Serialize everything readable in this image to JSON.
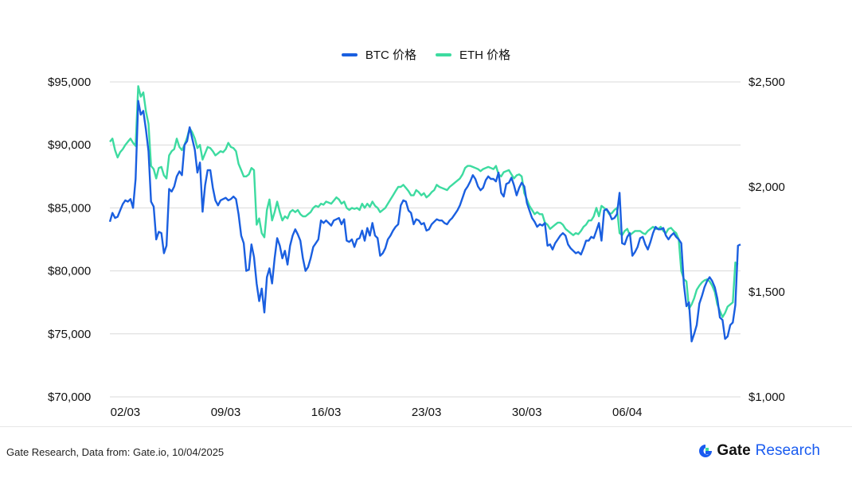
{
  "colors": {
    "btc": "#1a5fe0",
    "eth": "#3ddba0",
    "grid": "#d9d9d9",
    "brand": "#1a5cf0"
  },
  "legend": {
    "btc_label": "BTC 价格",
    "eth_label": "ETH 价格"
  },
  "footer": {
    "source": "Gate Research, Data from: Gate.io, 10/04/2025",
    "brand_name": "Gate",
    "brand_sub": "Research"
  },
  "chart_data": {
    "type": "line",
    "x_tick_labels": [
      "02/03",
      "09/03",
      "16/03",
      "23/03",
      "30/03",
      "06/04"
    ],
    "y_left": {
      "ticks": [
        "$70,000",
        "$75,000",
        "$80,000",
        "$85,000",
        "$90,000",
        "$95,000"
      ],
      "range": [
        70000,
        95000
      ]
    },
    "y_right": {
      "ticks": [
        "$1,000",
        "$1,500",
        "$2,000",
        "$2,500"
      ],
      "range": [
        1000,
        2500
      ]
    },
    "grid": true,
    "legend_position": "top",
    "series": [
      {
        "name": "BTC 价格",
        "axis": "left",
        "values": [
          83900,
          84600,
          84200,
          84300,
          84800,
          85300,
          85600,
          85500,
          85700,
          85000,
          87300,
          93500,
          92400,
          92700,
          91200,
          89500,
          85500,
          85100,
          82500,
          83100,
          83000,
          81400,
          82000,
          86500,
          86300,
          86700,
          87500,
          87900,
          87600,
          90000,
          90300,
          91400,
          90500,
          89600,
          87800,
          88600,
          84700,
          86800,
          88000,
          88000,
          86600,
          85600,
          85200,
          85600,
          85700,
          85800,
          85600,
          85700,
          85900,
          85700,
          84500,
          82800,
          82200,
          80000,
          80100,
          82100,
          81100,
          79000,
          77600,
          78600,
          76700,
          79500,
          80200,
          79000,
          81000,
          82600,
          82000,
          81000,
          81600,
          80500,
          82000,
          82800,
          83300,
          82900,
          82400,
          81000,
          80000,
          80300,
          81000,
          81900,
          82200,
          82500,
          84000,
          83800,
          84000,
          83800,
          83600,
          84000,
          84100,
          84200,
          83700,
          84100,
          82400,
          82300,
          82500,
          81900,
          82500,
          82600,
          83200,
          82400,
          83400,
          82800,
          83800,
          82800,
          82600,
          81200,
          81400,
          81800,
          82500,
          82800,
          83200,
          83500,
          83700,
          85200,
          85600,
          85500,
          84800,
          84600,
          83700,
          84100,
          84000,
          83700,
          83800,
          83200,
          83300,
          83700,
          83900,
          84100,
          84000,
          84000,
          83800,
          83700,
          84000,
          84200,
          84500,
          84800,
          85200,
          85800,
          86400,
          86700,
          87100,
          87600,
          87300,
          86700,
          86400,
          86600,
          87200,
          87500,
          87300,
          87300,
          87100,
          87800,
          86200,
          85900,
          86900,
          87000,
          87400,
          86800,
          86000,
          86600,
          87000,
          86700,
          85400,
          84800,
          84200,
          83900,
          83500,
          83700,
          83600,
          83800,
          82000,
          82100,
          81700,
          82200,
          82500,
          82800,
          83000,
          82800,
          82100,
          81800,
          81600,
          81400,
          81500,
          81300,
          81800,
          82400,
          82400,
          82700,
          82600,
          83200,
          83800,
          82400,
          84800,
          84900,
          84600,
          84100,
          84200,
          84500,
          86200,
          82200,
          82100,
          82700,
          83000,
          81200,
          81500,
          81900,
          82600,
          82700,
          82100,
          81700,
          82300,
          83000,
          83500,
          83300,
          83300,
          83400,
          82800,
          82500,
          82800,
          83000,
          82700,
          82500,
          82200,
          78900,
          77200,
          77500,
          74400,
          75000,
          75700,
          77400,
          78000,
          78700,
          79200,
          79500,
          79200,
          78700,
          77800,
          76300,
          76100,
          74600,
          74800,
          75700,
          75900,
          77300,
          82000,
          82100
        ]
      },
      {
        "name": "ETH 价格",
        "axis": "left_scaled",
        "values": [
          2215,
          2230,
          2175,
          2140,
          2165,
          2180,
          2200,
          2215,
          2230,
          2210,
          2195,
          2480,
          2430,
          2450,
          2360,
          2300,
          2100,
          2085,
          2040,
          2090,
          2095,
          2055,
          2040,
          2150,
          2170,
          2180,
          2230,
          2190,
          2175,
          2200,
          2235,
          2280,
          2260,
          2230,
          2185,
          2200,
          2130,
          2160,
          2190,
          2185,
          2170,
          2150,
          2160,
          2170,
          2165,
          2180,
          2210,
          2190,
          2185,
          2170,
          2110,
          2080,
          2050,
          2050,
          2060,
          2090,
          2080,
          1820,
          1850,
          1780,
          1760,
          1890,
          1940,
          1840,
          1880,
          1930,
          1880,
          1840,
          1860,
          1850,
          1880,
          1890,
          1880,
          1890,
          1870,
          1860,
          1860,
          1870,
          1880,
          1900,
          1910,
          1905,
          1920,
          1915,
          1930,
          1925,
          1920,
          1935,
          1950,
          1940,
          1920,
          1930,
          1900,
          1890,
          1900,
          1895,
          1900,
          1890,
          1920,
          1900,
          1920,
          1905,
          1930,
          1910,
          1900,
          1880,
          1890,
          1900,
          1920,
          1940,
          1960,
          1980,
          2000,
          2000,
          2010,
          1995,
          1980,
          1960,
          1960,
          1985,
          1975,
          1960,
          1970,
          1950,
          1960,
          1975,
          1985,
          2010,
          2000,
          1995,
          1990,
          1985,
          2000,
          2010,
          2020,
          2030,
          2040,
          2060,
          2090,
          2100,
          2100,
          2095,
          2090,
          2085,
          2075,
          2085,
          2090,
          2095,
          2090,
          2085,
          2100,
          2060,
          2050,
          2070,
          2075,
          2080,
          2060,
          2040,
          2055,
          2060,
          2050,
          1970,
          1940,
          1910,
          1890,
          1870,
          1880,
          1870,
          1870,
          1830,
          1820,
          1800,
          1810,
          1820,
          1830,
          1830,
          1820,
          1800,
          1790,
          1780,
          1770,
          1780,
          1775,
          1790,
          1810,
          1820,
          1840,
          1840,
          1860,
          1900,
          1860,
          1910,
          1900,
          1890,
          1870,
          1875,
          1890,
          1900,
          1780,
          1770,
          1790,
          1800,
          1770,
          1780,
          1790,
          1790,
          1790,
          1780,
          1775,
          1790,
          1800,
          1810,
          1800,
          1800,
          1810,
          1790,
          1780,
          1800,
          1805,
          1790,
          1780,
          1750,
          1600,
          1560,
          1550,
          1420,
          1440,
          1470,
          1510,
          1530,
          1545,
          1555,
          1560,
          1550,
          1530,
          1500,
          1440,
          1410,
          1380,
          1400,
          1430,
          1440,
          1450,
          1640,
          1630
        ]
      }
    ]
  }
}
